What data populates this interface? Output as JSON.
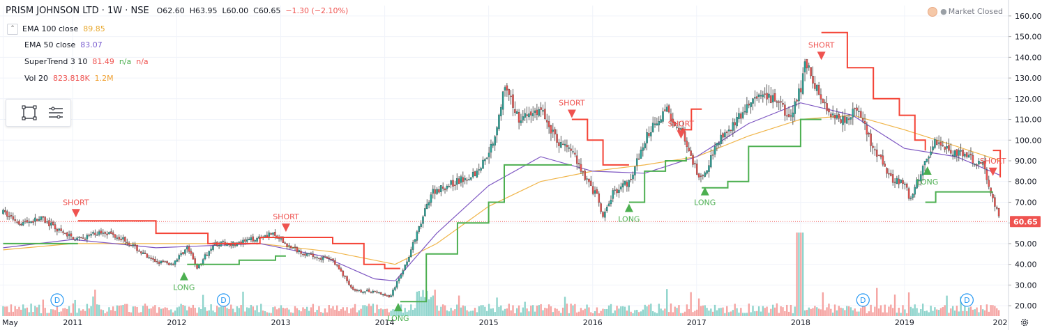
{
  "header": {
    "symbol": "PRISM JOHNSON LTD · 1W · NSE",
    "open_label": "O",
    "open": "62.60",
    "high_label": "H",
    "high": "63.95",
    "low_label": "L",
    "low": "60.00",
    "close_label": "C",
    "close": "60.65",
    "change": "−1.30 (−2.10%)"
  },
  "market_status": "Market Closed",
  "indicators": [
    {
      "label": "EMA 100 close",
      "value": "89.85",
      "color": "#e8a82e"
    },
    {
      "label": "EMA 50 close",
      "value": "83.07",
      "color": "#7b5fd0"
    },
    {
      "label": "SuperTrend 3 10",
      "value": "81.49",
      "v2": "n/a",
      "v3": "n/a"
    },
    {
      "label": "Vol 20",
      "value": "823.818K",
      "v2": "1.2M"
    }
  ],
  "colors": {
    "up": "#26a69a",
    "down": "#ef5350",
    "st_up": "#4caf50",
    "st_down": "#f44336",
    "ema100": "#f0b54a",
    "ema50": "#7e57c2",
    "vol_up": "#8fd4cc",
    "vol_down": "#f5a4a2"
  },
  "chart_data": {
    "type": "candlestick",
    "title": "PRISM JOHNSON LTD · 1W · NSE",
    "last_price": "60.65",
    "last_value": 60.65,
    "ylim": [
      15,
      165
    ],
    "y_ticks": [
      "20.00",
      "30.00",
      "40.00",
      "50.00",
      "60.00",
      "70.00",
      "80.00",
      "90.00",
      "100.00",
      "110.00",
      "120.00",
      "130.00",
      "140.00",
      "150.00",
      "160.00"
    ],
    "y_tick_values": [
      20,
      30,
      40,
      50,
      60,
      70,
      80,
      90,
      100,
      110,
      120,
      130,
      140,
      150,
      160
    ],
    "x_ticks": [
      "May",
      "2011",
      "2012",
      "2013",
      "2014",
      "2015",
      "2016",
      "2017",
      "2018",
      "2019",
      "202"
    ],
    "x_tick_values": [
      2010.33,
      2011.0,
      2012.0,
      2013.0,
      2014.0,
      2015.0,
      2016.0,
      2017.0,
      2018.0,
      2019.0,
      2020.0
    ],
    "xlim": [
      2010.3,
      2020.0
    ],
    "price_path": [
      [
        2010.33,
        65
      ],
      [
        2010.5,
        60
      ],
      [
        2010.7,
        62
      ],
      [
        2010.9,
        55
      ],
      [
        2011.05,
        52
      ],
      [
        2011.3,
        56
      ],
      [
        2011.5,
        52
      ],
      [
        2011.75,
        42
      ],
      [
        2011.95,
        40
      ],
      [
        2012.1,
        48
      ],
      [
        2012.2,
        38
      ],
      [
        2012.35,
        50
      ],
      [
        2012.6,
        50
      ],
      [
        2012.9,
        55
      ],
      [
        2013.1,
        48
      ],
      [
        2013.3,
        44
      ],
      [
        2013.5,
        42
      ],
      [
        2013.6,
        35
      ],
      [
        2013.7,
        27
      ],
      [
        2013.9,
        27
      ],
      [
        2014.05,
        24
      ],
      [
        2014.2,
        40
      ],
      [
        2014.35,
        60
      ],
      [
        2014.45,
        75
      ],
      [
        2014.7,
        80
      ],
      [
        2014.9,
        85
      ],
      [
        2015.05,
        100
      ],
      [
        2015.15,
        125
      ],
      [
        2015.3,
        110
      ],
      [
        2015.5,
        115
      ],
      [
        2015.65,
        100
      ],
      [
        2015.8,
        95
      ],
      [
        2015.95,
        80
      ],
      [
        2016.05,
        72
      ],
      [
        2016.1,
        62
      ],
      [
        2016.2,
        75
      ],
      [
        2016.35,
        80
      ],
      [
        2016.55,
        105
      ],
      [
        2016.7,
        115
      ],
      [
        2016.85,
        105
      ],
      [
        2016.95,
        90
      ],
      [
        2017.05,
        80
      ],
      [
        2017.2,
        100
      ],
      [
        2017.4,
        110
      ],
      [
        2017.55,
        120
      ],
      [
        2017.75,
        120
      ],
      [
        2017.9,
        110
      ],
      [
        2018.0,
        125
      ],
      [
        2018.05,
        140
      ],
      [
        2018.1,
        130
      ],
      [
        2018.25,
        115
      ],
      [
        2018.4,
        110
      ],
      [
        2018.55,
        115
      ],
      [
        2018.7,
        95
      ],
      [
        2018.8,
        88
      ],
      [
        2018.9,
        80
      ],
      [
        2019.0,
        80
      ],
      [
        2019.05,
        70
      ],
      [
        2019.2,
        90
      ],
      [
        2019.3,
        100
      ],
      [
        2019.45,
        95
      ],
      [
        2019.6,
        92
      ],
      [
        2019.75,
        88
      ],
      [
        2019.85,
        72
      ],
      [
        2019.92,
        61
      ]
    ],
    "ema100": [
      [
        2010.33,
        47
      ],
      [
        2011.0,
        50
      ],
      [
        2012.0,
        50
      ],
      [
        2012.8,
        50
      ],
      [
        2013.5,
        46
      ],
      [
        2013.9,
        42
      ],
      [
        2014.1,
        40
      ],
      [
        2014.5,
        50
      ],
      [
        2015.0,
        68
      ],
      [
        2015.5,
        80
      ],
      [
        2016.0,
        85
      ],
      [
        2016.5,
        88
      ],
      [
        2017.0,
        92
      ],
      [
        2017.5,
        102
      ],
      [
        2018.0,
        110
      ],
      [
        2018.5,
        112
      ],
      [
        2019.0,
        105
      ],
      [
        2019.5,
        97
      ],
      [
        2019.92,
        90
      ]
    ],
    "ema50": [
      [
        2010.33,
        48
      ],
      [
        2011.0,
        52
      ],
      [
        2011.8,
        48
      ],
      [
        2012.8,
        50
      ],
      [
        2013.4,
        44
      ],
      [
        2013.9,
        33
      ],
      [
        2014.1,
        32
      ],
      [
        2014.5,
        55
      ],
      [
        2015.0,
        78
      ],
      [
        2015.5,
        92
      ],
      [
        2016.0,
        85
      ],
      [
        2016.5,
        84
      ],
      [
        2017.0,
        92
      ],
      [
        2017.5,
        108
      ],
      [
        2018.0,
        118
      ],
      [
        2018.5,
        112
      ],
      [
        2019.0,
        96
      ],
      [
        2019.5,
        92
      ],
      [
        2019.92,
        83
      ]
    ],
    "supertrend_segments": [
      {
        "trend": "up",
        "points": [
          [
            2010.33,
            50
          ],
          [
            2011.05,
            50
          ]
        ]
      },
      {
        "trend": "down",
        "points": [
          [
            2011.05,
            61
          ],
          [
            2011.5,
            61
          ],
          [
            2011.8,
            55
          ],
          [
            2012.3,
            50
          ],
          [
            2012.8,
            53
          ],
          [
            2013.05,
            53
          ]
        ]
      },
      {
        "trend": "up",
        "points": [
          [
            2012.1,
            40
          ],
          [
            2012.3,
            40
          ],
          [
            2012.6,
            42
          ],
          [
            2012.95,
            44
          ],
          [
            2013.05,
            44
          ]
        ]
      },
      {
        "trend": "down",
        "points": [
          [
            2013.05,
            53
          ],
          [
            2013.5,
            50
          ],
          [
            2013.8,
            40
          ],
          [
            2014.0,
            38
          ],
          [
            2014.15,
            38
          ]
        ]
      },
      {
        "trend": "up",
        "points": [
          [
            2014.15,
            22
          ],
          [
            2014.4,
            45
          ],
          [
            2014.7,
            60
          ],
          [
            2015.0,
            70
          ],
          [
            2015.15,
            88
          ],
          [
            2015.8,
            88
          ]
        ]
      },
      {
        "trend": "down",
        "points": [
          [
            2015.8,
            110
          ],
          [
            2015.95,
            100
          ],
          [
            2016.1,
            88
          ],
          [
            2016.35,
            88
          ]
        ]
      },
      {
        "trend": "up",
        "points": [
          [
            2016.35,
            70
          ],
          [
            2016.5,
            85
          ],
          [
            2016.7,
            90
          ],
          [
            2016.9,
            92
          ]
        ]
      },
      {
        "trend": "down",
        "points": [
          [
            2016.85,
            105
          ],
          [
            2016.95,
            115
          ],
          [
            2017.05,
            115
          ]
        ]
      },
      {
        "trend": "up",
        "points": [
          [
            2017.05,
            77
          ],
          [
            2017.3,
            80
          ],
          [
            2017.5,
            97
          ],
          [
            2018.0,
            110
          ],
          [
            2018.2,
            110
          ]
        ]
      },
      {
        "trend": "down",
        "points": [
          [
            2018.2,
            152
          ],
          [
            2018.45,
            135
          ],
          [
            2018.7,
            120
          ],
          [
            2018.95,
            112
          ],
          [
            2019.1,
            100
          ],
          [
            2019.2,
            95
          ]
        ]
      },
      {
        "trend": "up",
        "points": [
          [
            2019.2,
            70
          ],
          [
            2019.3,
            75
          ],
          [
            2019.85,
            75
          ]
        ]
      },
      {
        "trend": "down",
        "points": [
          [
            2019.85,
            95
          ],
          [
            2019.92,
            82
          ]
        ]
      }
    ],
    "signals": [
      {
        "type": "SHORT",
        "x": 2011.03,
        "y": 62
      },
      {
        "type": "SHORT",
        "x": 2013.05,
        "y": 55
      },
      {
        "type": "LONG",
        "x": 2012.07,
        "y": 37
      },
      {
        "type": "LONG",
        "x": 2014.13,
        "y": 22
      },
      {
        "type": "SHORT",
        "x": 2015.8,
        "y": 110
      },
      {
        "type": "LONG",
        "x": 2016.35,
        "y": 70
      },
      {
        "type": "SHORT",
        "x": 2016.85,
        "y": 100
      },
      {
        "type": "LONG",
        "x": 2017.08,
        "y": 78
      },
      {
        "type": "SHORT",
        "x": 2018.2,
        "y": 138
      },
      {
        "type": "LONG",
        "x": 2019.22,
        "y": 88
      },
      {
        "type": "SHORT",
        "x": 2019.85,
        "y": 82
      }
    ],
    "dividends": [
      {
        "label": "D",
        "x": 2010.85
      },
      {
        "label": "D",
        "x": 2012.45
      },
      {
        "label": "D",
        "x": 2018.6
      },
      {
        "label": "D",
        "x": 2019.6
      }
    ]
  }
}
